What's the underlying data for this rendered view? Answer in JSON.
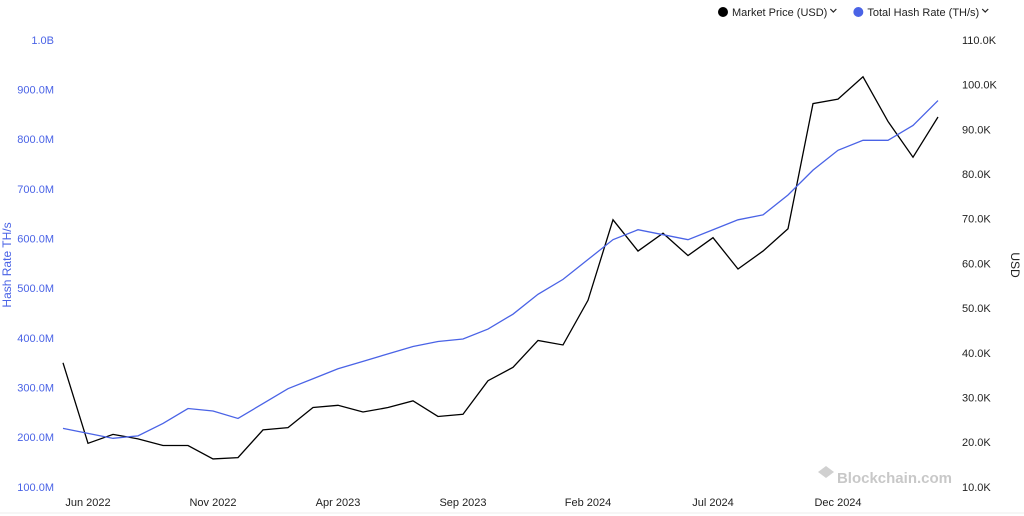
{
  "chart_data": {
    "type": "line",
    "categories": [
      null,
      "Jun 2022",
      null,
      null,
      null,
      null,
      "Nov 2022",
      null,
      null,
      null,
      null,
      "Apr 2023",
      null,
      null,
      null,
      null,
      "Sep 2023",
      null,
      null,
      null,
      null,
      "Feb 2024",
      null,
      null,
      null,
      null,
      "Jul 2024",
      null,
      null,
      null,
      null,
      "Dec 2024",
      null,
      null,
      null,
      null
    ],
    "series": [
      {
        "name": "Market Price (USD)",
        "color": "#000000",
        "axis": "y2",
        "values": [
          38000,
          20000,
          22000,
          21000,
          19500,
          19500,
          16500,
          16800,
          23000,
          23500,
          28000,
          28500,
          27000,
          28000,
          29500,
          26000,
          26500,
          34000,
          37000,
          43000,
          42000,
          52000,
          70000,
          63000,
          67000,
          62000,
          66000,
          59000,
          63000,
          68000,
          96000,
          97000,
          102000,
          92000,
          84000,
          93000
        ]
      },
      {
        "name": "Total Hash Rate (TH/s)",
        "color": "#4a63e6",
        "values": [
          220000000,
          210000000,
          200000000,
          205000000,
          230000000,
          260000000,
          255000000,
          240000000,
          270000000,
          300000000,
          320000000,
          340000000,
          355000000,
          370000000,
          385000000,
          395000000,
          400000000,
          420000000,
          450000000,
          490000000,
          520000000,
          560000000,
          600000000,
          620000000,
          610000000,
          600000000,
          620000000,
          640000000,
          650000000,
          690000000,
          740000000,
          780000000,
          800000000,
          800000000,
          830000000,
          880000000
        ]
      }
    ],
    "y_label": "Hash Rate TH/s",
    "y2_label": "USD",
    "watermark": "Blockchain.com",
    "ylim": [
      100000000,
      1000000000
    ],
    "yticks": [
      {
        "value": 100000000,
        "label": "100.0M"
      },
      {
        "value": 200000000,
        "label": "200.0M"
      },
      {
        "value": 300000000,
        "label": "300.0M"
      },
      {
        "value": 400000000,
        "label": "400.0M"
      },
      {
        "value": 500000000,
        "label": "500.0M"
      },
      {
        "value": 600000000,
        "label": "600.0M"
      },
      {
        "value": 700000000,
        "label": "700.0M"
      },
      {
        "value": 800000000,
        "label": "800.0M"
      },
      {
        "value": 900000000,
        "label": "900.0M"
      },
      {
        "value": 1000000000,
        "label": "1.0B"
      }
    ],
    "y2lim": [
      10000,
      110000
    ],
    "y2ticks": [
      {
        "value": 10000,
        "label": "10.0K"
      },
      {
        "value": 20000,
        "label": "20.0K"
      },
      {
        "value": 30000,
        "label": "30.0K"
      },
      {
        "value": 40000,
        "label": "40.0K"
      },
      {
        "value": 50000,
        "label": "50.0K"
      },
      {
        "value": 60000,
        "label": "60.0K"
      },
      {
        "value": 70000,
        "label": "70.0K"
      },
      {
        "value": 80000,
        "label": "80.0K"
      },
      {
        "value": 90000,
        "label": "90.0K"
      },
      {
        "value": 100000,
        "label": "100.0K"
      },
      {
        "value": 110000,
        "label": "110.0K"
      }
    ]
  }
}
